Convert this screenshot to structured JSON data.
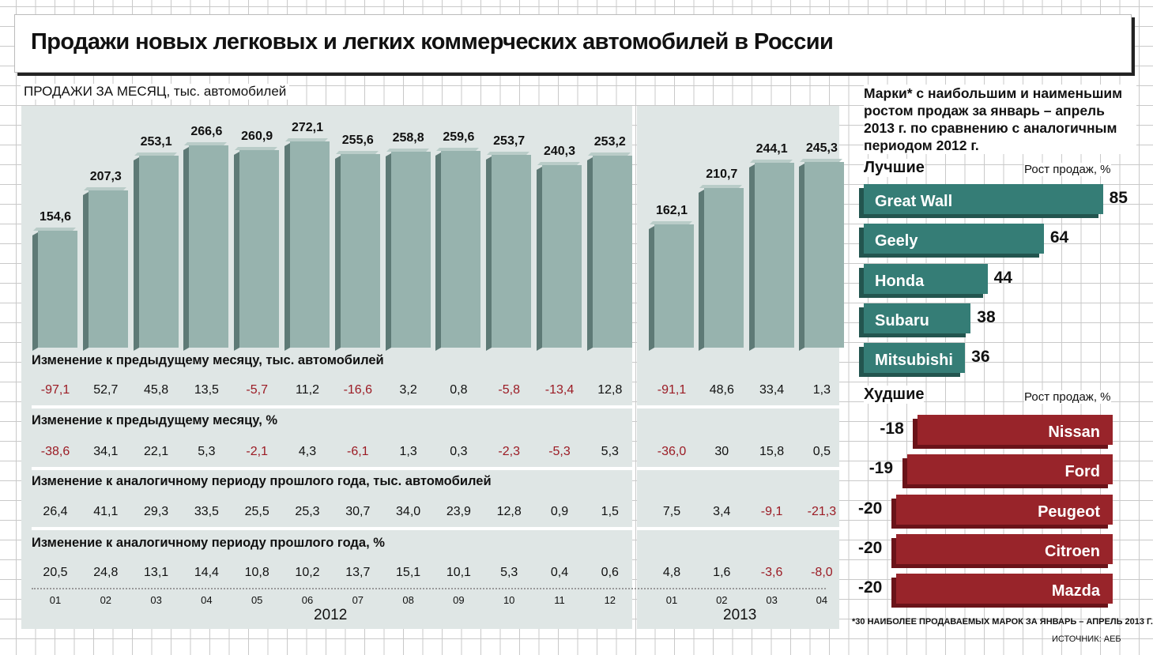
{
  "title": "Продажи новых легковых и легких коммерческих автомобилей в России",
  "subtitle": "ПРОДАЖИ ЗА МЕСЯЦ, тыс. автомобилей",
  "chart_data": [
    {
      "type": "bar",
      "title": "ПРОДАЖИ ЗА МЕСЯЦ, тыс. автомобилей",
      "categories": [
        "01",
        "02",
        "03",
        "04",
        "05",
        "06",
        "07",
        "08",
        "09",
        "10",
        "11",
        "12",
        "01",
        "02",
        "03",
        "04"
      ],
      "years": [
        {
          "label": "2012",
          "count": 12
        },
        {
          "label": "2013",
          "count": 4
        }
      ],
      "values": [
        154.6,
        207.3,
        253.1,
        266.6,
        260.9,
        272.1,
        255.6,
        258.8,
        259.6,
        253.7,
        240.3,
        253.2,
        162.1,
        210.7,
        244.1,
        245.3
      ],
      "value_labels": [
        "154,6",
        "207,3",
        "253,1",
        "266,6",
        "260,9",
        "272,1",
        "255,6",
        "258,8",
        "259,6",
        "253,7",
        "240,3",
        "253,2",
        "162,1",
        "210,7",
        "244,1",
        "245,3"
      ],
      "ylim": [
        0,
        300
      ],
      "rows": [
        {
          "label": "Изменение к предыдущему месяцу, тыс. автомобилей",
          "values": [
            "-97,1",
            "52,7",
            "45,8",
            "13,5",
            "-5,7",
            "11,2",
            "-16,6",
            "3,2",
            "0,8",
            "-5,8",
            "-13,4",
            "12,8",
            "-91,1",
            "48,6",
            "33,4",
            "1,3"
          ]
        },
        {
          "label": "Изменение к предыдущему месяцу, %",
          "values": [
            "-38,6",
            "34,1",
            "22,1",
            "5,3",
            "-2,1",
            "4,3",
            "-6,1",
            "1,3",
            "0,3",
            "-2,3",
            "-5,3",
            "5,3",
            "-36,0",
            "30",
            "15,8",
            "0,5"
          ]
        },
        {
          "label": "Изменение к аналогичному периоду прошлого года, тыс. автомобилей",
          "values": [
            "26,4",
            "41,1",
            "29,3",
            "33,5",
            "25,5",
            "25,3",
            "30,7",
            "34,0",
            "23,9",
            "12,8",
            "0,9",
            "1,5",
            "7,5",
            "3,4",
            "-9,1",
            "-21,3"
          ]
        },
        {
          "label": "Изменение к аналогичному периоду прошлого года, %",
          "values": [
            "20,5",
            "24,8",
            "13,1",
            "14,4",
            "10,8",
            "10,2",
            "13,7",
            "15,1",
            "10,1",
            "5,3",
            "0,4",
            "0,6",
            "4,8",
            "1,6",
            "-3,6",
            "-8,0"
          ]
        }
      ]
    },
    {
      "type": "bar",
      "orientation": "horizontal",
      "title": "Марки* с наибольшим и наименьшим ростом продаж за январь – апрель 2013 г. по сравнению с аналогичным периодом 2012 г.",
      "best_label": "Лучшие",
      "worst_label": "Худшие",
      "axis_label": "Рост продаж, %",
      "best": [
        {
          "name": "Great Wall",
          "value": 85
        },
        {
          "name": "Geely",
          "value": 64
        },
        {
          "name": "Honda",
          "value": 44
        },
        {
          "name": "Subaru",
          "value": 38
        },
        {
          "name": "Mitsubishi",
          "value": 36
        }
      ],
      "worst": [
        {
          "name": "Nissan",
          "value": -18
        },
        {
          "name": "Ford",
          "value": -19
        },
        {
          "name": "Peugeot",
          "value": -20
        },
        {
          "name": "Citroen",
          "value": -20
        },
        {
          "name": "Mazda",
          "value": -20
        }
      ]
    }
  ],
  "colors": {
    "bar": "#97b3ae",
    "best": "#357d76",
    "worst": "#98242a",
    "negative": "#9b1b24"
  },
  "footnote": "*30 НАИБОЛЕЕ ПРОДАВАЕМЫХ МАРОК ЗА ЯНВАРЬ – АПРЕЛЬ 2013 Г.",
  "source": "ИСТОЧНИК: АЕБ"
}
